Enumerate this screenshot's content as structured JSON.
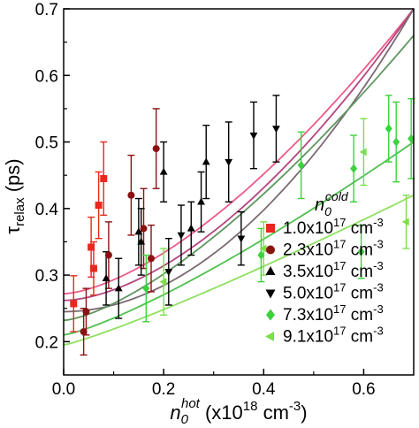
{
  "chart_data": {
    "type": "scatter",
    "title": "",
    "xlabel": {
      "base": "n",
      "sub": "0",
      "sup": "hot",
      "rest": " (x10",
      "exp": "18",
      "unit": " cm",
      "unit_exp": "-3",
      "close": ")"
    },
    "ylabel": {
      "base": "τ",
      "sub": "relax",
      "rest": " (ps)"
    },
    "xlim": [
      0.0,
      0.7
    ],
    "ylim": [
      0.15,
      0.7
    ],
    "x_ticks": [
      0.0,
      0.2,
      0.4,
      0.6
    ],
    "x_tick_labels": [
      "0.0",
      "0.2",
      "0.4",
      "0.6"
    ],
    "y_ticks": [
      0.2,
      0.3,
      0.4,
      0.5,
      0.6,
      0.7
    ],
    "y_tick_labels": [
      "0.2",
      "0.3",
      "0.4",
      "0.5",
      "0.6",
      "0.7"
    ],
    "legend_title": {
      "base": "n",
      "sub": "0",
      "sup": "cold"
    },
    "legend_placement": "bottom-right",
    "series": [
      {
        "name": "1.0x10",
        "exp": "17",
        "unit": " cm",
        "unit_exp": "-3",
        "marker": "square",
        "color": "#e8281c",
        "fit_color": "#ee5a86",
        "fit": [
          0.272,
          0.7
        ],
        "fit_exponent": 1.55,
        "points": [
          [
            0.02,
            0.257,
            0.042
          ],
          [
            0.055,
            0.342,
            0.045
          ],
          [
            0.06,
            0.31,
            0.04
          ],
          [
            0.07,
            0.405,
            0.05
          ],
          [
            0.08,
            0.445,
            0.055
          ]
        ]
      },
      {
        "name": "2.3x10",
        "exp": "17",
        "unit": " cm",
        "unit_exp": "-3",
        "marker": "circle",
        "color": "#8b1212",
        "fit_color": "#b5457e",
        "fit": [
          0.262,
          0.7
        ],
        "fit_exponent": 1.7,
        "points": [
          [
            0.04,
            0.215,
            0.035
          ],
          [
            0.045,
            0.245,
            0.035
          ],
          [
            0.09,
            0.33,
            0.05
          ],
          [
            0.135,
            0.42,
            0.06
          ],
          [
            0.16,
            0.37,
            0.06
          ],
          [
            0.175,
            0.325,
            0.05
          ],
          [
            0.185,
            0.49,
            0.06
          ]
        ]
      },
      {
        "name": "3.5x10",
        "exp": "17",
        "unit": " cm",
        "unit_exp": "-3",
        "marker": "triangle-up",
        "color": "#000000",
        "fit_color": "#7a6a72",
        "fit": [
          0.245,
          0.7
        ],
        "fit_exponent": 1.95,
        "points": [
          [
            0.085,
            0.295,
            0.04
          ],
          [
            0.11,
            0.28,
            0.045
          ],
          [
            0.15,
            0.365,
            0.05
          ],
          [
            0.155,
            0.35,
            0.05
          ],
          [
            0.2,
            0.455,
            0.045
          ],
          [
            0.255,
            0.37,
            0.04
          ],
          [
            0.275,
            0.41,
            0.045
          ],
          [
            0.285,
            0.47,
            0.055
          ]
        ]
      },
      {
        "name": "5.0x10",
        "exp": "17",
        "unit": " cm",
        "unit_exp": "-3",
        "marker": "triangle-down",
        "color": "#000000",
        "fit_color": "#5e9660",
        "fit": [
          0.232,
          0.66
        ],
        "fit_exponent": 1.45,
        "points": [
          [
            0.21,
            0.305,
            0.05
          ],
          [
            0.235,
            0.36,
            0.045
          ],
          [
            0.33,
            0.47,
            0.06
          ],
          [
            0.355,
            0.355,
            0.04
          ],
          [
            0.38,
            0.51,
            0.05
          ],
          [
            0.425,
            0.52,
            0.05
          ]
        ]
      },
      {
        "name": "7.3x10",
        "exp": "17",
        "unit": " cm",
        "unit_exp": "-3",
        "marker": "diamond",
        "color": "#3ed13e",
        "fit_color": "#4fc04f",
        "fit": [
          0.21,
          0.5
        ],
        "fit_exponent": 1.25,
        "points": [
          [
            0.165,
            0.28,
            0.05
          ],
          [
            0.395,
            0.33,
            0.04
          ],
          [
            0.475,
            0.465,
            0.05
          ],
          [
            0.58,
            0.46,
            0.05
          ],
          [
            0.595,
            0.335,
            0.04
          ],
          [
            0.65,
            0.52,
            0.05
          ],
          [
            0.665,
            0.5,
            0.06
          ],
          [
            0.695,
            0.505,
            0.06
          ]
        ]
      },
      {
        "name": "9.1x10",
        "exp": "17",
        "unit": " cm",
        "unit_exp": "-3",
        "marker": "triangle-left",
        "color": "#7dde4a",
        "fit_color": "#8ee060",
        "fit": [
          0.195,
          0.42
        ],
        "fit_exponent": 1.15,
        "points": [
          [
            0.2,
            0.29,
            0.05
          ],
          [
            0.4,
            0.34,
            0.04
          ],
          [
            0.6,
            0.485,
            0.05
          ],
          [
            0.685,
            0.38,
            0.04
          ]
        ]
      }
    ]
  }
}
